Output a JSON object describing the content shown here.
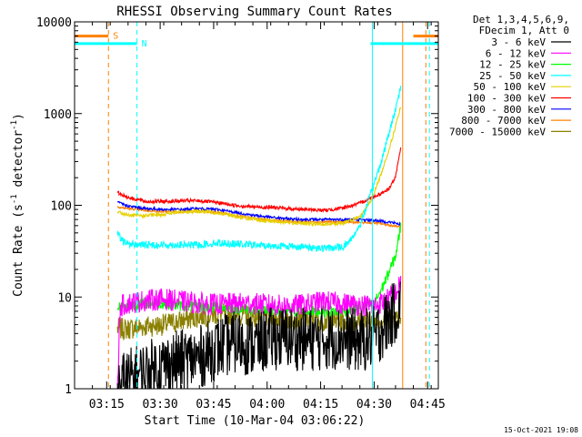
{
  "chart_data": {
    "type": "line",
    "title": "RHESSI Observing Summary Count Rates",
    "xlabel": "Start Time (10-Mar-04 03:06:22)",
    "ylabel_main": "Count Rate (s",
    "ylabel_sup1": "-1",
    "ylabel_mid": " detector",
    "ylabel_sup2": "-1",
    "ylabel_end": ")",
    "yscale": "log",
    "xlim_minutes": [
      0,
      102
    ],
    "ylim": [
      1,
      10000
    ],
    "x_ticks": [
      {
        "m": 9,
        "label": "03:15"
      },
      {
        "m": 24,
        "label": "03:30"
      },
      {
        "m": 39,
        "label": "03:45"
      },
      {
        "m": 54,
        "label": "04:00"
      },
      {
        "m": 69,
        "label": "04:15"
      },
      {
        "m": 84,
        "label": "04:30"
      },
      {
        "m": 99,
        "label": "04:45"
      }
    ],
    "y_ticks": [
      {
        "v": 1,
        "label": "1"
      },
      {
        "v": 10,
        "label": "10"
      },
      {
        "v": 100,
        "label": "100"
      },
      {
        "v": 1000,
        "label": "1000"
      },
      {
        "v": 10000,
        "label": "10000"
      }
    ],
    "legend_header": [
      "Det 1,3,4,5,6,9,",
      "FDecim 1, Att 0"
    ],
    "legend_placement": "right",
    "footer_date": "15-Oct-2021 19:08",
    "flags": [
      {
        "label": "S",
        "color": "#ff8000",
        "y": 7000,
        "segments": [
          [
            0,
            9.5
          ],
          [
            95,
            102
          ]
        ]
      },
      {
        "label": "N",
        "color": "#00ffff",
        "y": 5800,
        "segments": [
          [
            0,
            17.5
          ],
          [
            83,
            102
          ]
        ]
      }
    ],
    "vlines": [
      {
        "m": 0,
        "color": "#00ffff",
        "style": "solid"
      },
      {
        "m": 9.5,
        "color": "#ff8000",
        "style": "dashed"
      },
      {
        "m": 17.5,
        "color": "#00ffff",
        "style": "dashed"
      },
      {
        "m": 83.5,
        "color": "#00ffff",
        "style": "solid"
      },
      {
        "m": 92,
        "color": "#ff8000",
        "style": "solid"
      },
      {
        "m": 98.5,
        "color": "#ff8000",
        "style": "dashed"
      },
      {
        "m": 99.5,
        "color": "#00ffff",
        "style": "dashed"
      }
    ],
    "series": [
      {
        "name": "3 - 6 keV",
        "color": "#000000",
        "noise": 0.35,
        "points": [
          [
            12,
            1
          ],
          [
            14,
            1.2
          ],
          [
            20,
            1.5
          ],
          [
            25,
            1.8
          ],
          [
            30,
            2.0
          ],
          [
            35,
            2.2
          ],
          [
            40,
            2.8
          ],
          [
            45,
            3.2
          ],
          [
            50,
            3.0
          ],
          [
            55,
            3.5
          ],
          [
            60,
            3.6
          ],
          [
            65,
            3.4
          ],
          [
            70,
            3.5
          ],
          [
            75,
            3.6
          ],
          [
            80,
            3.3
          ],
          [
            84,
            3.6
          ],
          [
            87,
            5
          ],
          [
            90,
            7
          ],
          [
            91.5,
            8
          ]
        ]
      },
      {
        "name": "6 - 12 keV",
        "color": "#ff00ff",
        "noise": 0.12,
        "points": [
          [
            12,
            1
          ],
          [
            12.8,
            8
          ],
          [
            15,
            8.5
          ],
          [
            20,
            9.2
          ],
          [
            25,
            9.5
          ],
          [
            30,
            9
          ],
          [
            35,
            8.5
          ],
          [
            40,
            8.3
          ],
          [
            45,
            8.5
          ],
          [
            50,
            8.5
          ],
          [
            55,
            8.2
          ],
          [
            60,
            8
          ],
          [
            65,
            8.3
          ],
          [
            70,
            9
          ],
          [
            75,
            8.5
          ],
          [
            80,
            8.2
          ],
          [
            84,
            8
          ],
          [
            87,
            9
          ],
          [
            90,
            11
          ],
          [
            91.5,
            14
          ]
        ]
      },
      {
        "name": "12 - 25 keV",
        "color": "#00ff00",
        "noise": 0.06,
        "points": [
          [
            12,
            7.8
          ],
          [
            20,
            8.5
          ],
          [
            25,
            8.5
          ],
          [
            30,
            8
          ],
          [
            35,
            7.8
          ],
          [
            40,
            7.8
          ],
          [
            45,
            7.5
          ],
          [
            50,
            7.3
          ],
          [
            55,
            7.2
          ],
          [
            60,
            7
          ],
          [
            65,
            7
          ],
          [
            70,
            7
          ],
          [
            75,
            7
          ],
          [
            80,
            7.5
          ],
          [
            84,
            8.5
          ],
          [
            86,
            12
          ],
          [
            88,
            18
          ],
          [
            90,
            28
          ],
          [
            91.5,
            60
          ]
        ]
      },
      {
        "name": "25 - 50 keV",
        "color": "#00ffff",
        "noise": 0.04,
        "points": [
          [
            12,
            50
          ],
          [
            13,
            42
          ],
          [
            15,
            38
          ],
          [
            20,
            37
          ],
          [
            25,
            37
          ],
          [
            30,
            37
          ],
          [
            35,
            37
          ],
          [
            40,
            39
          ],
          [
            45,
            38
          ],
          [
            50,
            37
          ],
          [
            55,
            36
          ],
          [
            60,
            36
          ],
          [
            65,
            35
          ],
          [
            70,
            34
          ],
          [
            75,
            35
          ],
          [
            77,
            40
          ],
          [
            80,
            60
          ],
          [
            83,
            130
          ],
          [
            86,
            300
          ],
          [
            89,
            800
          ],
          [
            91.5,
            1950
          ]
        ]
      },
      {
        "name": "50 - 100 keV",
        "color": "#e6d000",
        "noise": 0.02,
        "points": [
          [
            12,
            85
          ],
          [
            15,
            78
          ],
          [
            20,
            77
          ],
          [
            25,
            80
          ],
          [
            30,
            85
          ],
          [
            35,
            86
          ],
          [
            40,
            83
          ],
          [
            45,
            76
          ],
          [
            50,
            70
          ],
          [
            55,
            67
          ],
          [
            60,
            65
          ],
          [
            65,
            63
          ],
          [
            70,
            62
          ],
          [
            75,
            64
          ],
          [
            80,
            75
          ],
          [
            83,
            110
          ],
          [
            86,
            220
          ],
          [
            89,
            520
          ],
          [
            91.5,
            1200
          ]
        ]
      },
      {
        "name": "100 - 300 keV",
        "color": "#ff0000",
        "noise": 0.02,
        "points": [
          [
            12,
            138
          ],
          [
            15,
            122
          ],
          [
            20,
            110
          ],
          [
            25,
            110
          ],
          [
            30,
            112
          ],
          [
            35,
            112
          ],
          [
            40,
            107
          ],
          [
            45,
            100
          ],
          [
            50,
            96
          ],
          [
            55,
            95
          ],
          [
            60,
            92
          ],
          [
            65,
            90
          ],
          [
            70,
            88
          ],
          [
            75,
            93
          ],
          [
            80,
            105
          ],
          [
            83,
            120
          ],
          [
            86,
            135
          ],
          [
            88,
            150
          ],
          [
            90,
            200
          ],
          [
            91.5,
            440
          ]
        ]
      },
      {
        "name": "300 - 800 keV",
        "color": "#0000ff",
        "noise": 0.015,
        "points": [
          [
            12,
            108
          ],
          [
            15,
            98
          ],
          [
            20,
            92
          ],
          [
            25,
            90
          ],
          [
            30,
            90
          ],
          [
            35,
            92
          ],
          [
            40,
            90
          ],
          [
            45,
            84
          ],
          [
            50,
            78
          ],
          [
            55,
            74
          ],
          [
            60,
            71
          ],
          [
            65,
            70
          ],
          [
            70,
            70
          ],
          [
            75,
            70
          ],
          [
            80,
            70
          ],
          [
            85,
            68
          ],
          [
            89,
            65
          ],
          [
            91.5,
            62
          ]
        ]
      },
      {
        "name": "800 - 7000 keV",
        "color": "#ff8000",
        "noise": 0.012,
        "points": [
          [
            12,
            96
          ],
          [
            15,
            92
          ],
          [
            20,
            88
          ],
          [
            25,
            85
          ],
          [
            30,
            85
          ],
          [
            35,
            86
          ],
          [
            40,
            84
          ],
          [
            45,
            78
          ],
          [
            50,
            72
          ],
          [
            55,
            69
          ],
          [
            60,
            67
          ],
          [
            65,
            66
          ],
          [
            70,
            66
          ],
          [
            75,
            66
          ],
          [
            80,
            65
          ],
          [
            85,
            64
          ],
          [
            89,
            60
          ],
          [
            91.5,
            58
          ]
        ]
      },
      {
        "name": "7000 - 15000 keV",
        "color": "#8b8000",
        "noise": 0.12,
        "points": [
          [
            12,
            4.5
          ],
          [
            15,
            4.5
          ],
          [
            20,
            4.8
          ],
          [
            25,
            5
          ],
          [
            30,
            5.5
          ],
          [
            35,
            6.2
          ],
          [
            40,
            6.5
          ],
          [
            45,
            6.5
          ],
          [
            50,
            6.2
          ],
          [
            55,
            6
          ],
          [
            60,
            5.8
          ],
          [
            65,
            5.8
          ],
          [
            70,
            5.5
          ],
          [
            75,
            5.5
          ],
          [
            80,
            5.3
          ],
          [
            84,
            5.5
          ],
          [
            88,
            5.8
          ],
          [
            91.5,
            6
          ]
        ]
      }
    ]
  }
}
